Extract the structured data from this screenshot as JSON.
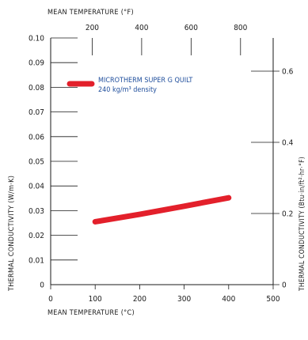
{
  "chart_data": {
    "type": "line",
    "xlabel_bottom": "MEAN TEMPERATURE (°C)",
    "xlabel_top": "MEAN TEMPERATURE (°F)",
    "ylabel_left": "THERMAL CONDUCTIVITY (W/m·K)",
    "ylabel_right": "THERMAL CONDUCTIVITY (Btu·in/ft²·hr·°F)",
    "xlim": [
      0,
      500
    ],
    "ylim": [
      0,
      0.1
    ],
    "ylim_right": [
      0,
      0.6934
    ],
    "x_ticks": [
      "0",
      "100",
      "200",
      "300",
      "400",
      "500"
    ],
    "x_tick_values": [
      0,
      100,
      200,
      300,
      400,
      500
    ],
    "y_ticks": [
      "0",
      "0.01",
      "0.02",
      "0.03",
      "0.04",
      "0.05",
      "0.06",
      "0.07",
      "0.08",
      "0.09",
      "0.10"
    ],
    "y_tick_values": [
      0,
      0.01,
      0.02,
      0.03,
      0.04,
      0.05,
      0.06,
      0.07,
      0.08,
      0.09,
      0.1
    ],
    "x_top_ticks": [
      "200",
      "400",
      "600",
      "800"
    ],
    "x_top_tick_values": [
      200,
      400,
      600,
      800
    ],
    "y_right_ticks": [
      "0",
      "0.2",
      "0.4",
      "0.6"
    ],
    "y_right_tick_values": [
      0,
      0.2,
      0.4,
      0.6
    ],
    "series": [
      {
        "name": "MICROTHERM SUPER G QUILT",
        "subtitle": "240 kg/m³ density",
        "color": "#e3202b",
        "x": [
          100,
          200,
          300,
          400
        ],
        "y": [
          0.0255,
          0.0285,
          0.0318,
          0.0352
        ]
      }
    ],
    "legend_position": "top-left",
    "grid": false
  }
}
